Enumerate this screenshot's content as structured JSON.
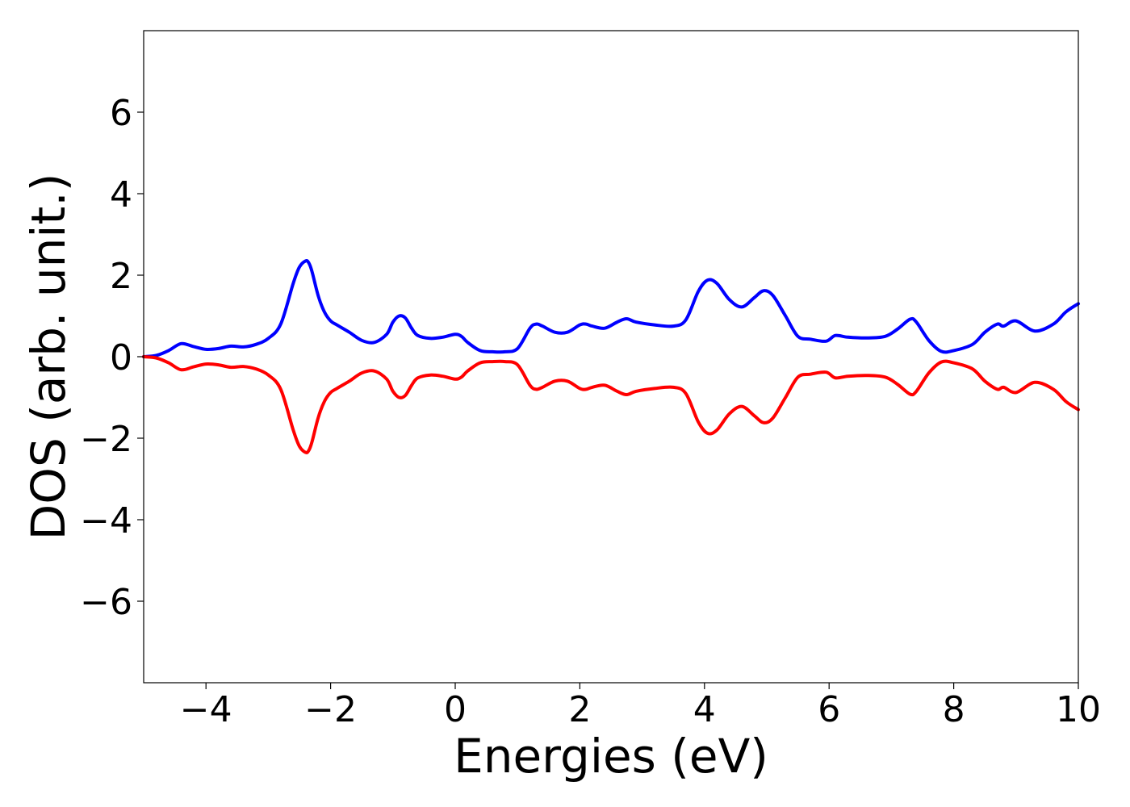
{
  "chart_data": {
    "type": "line",
    "title": "",
    "xlabel": "Energies (eV)",
    "ylabel": "DOS (arb. unit.)",
    "xlim": [
      -5,
      10
    ],
    "ylim": [
      -8,
      8
    ],
    "xticks": [
      -4,
      -2,
      0,
      2,
      4,
      6,
      8,
      10
    ],
    "xtick_labels": [
      "−4",
      "−2",
      "0",
      "2",
      "4",
      "6",
      "8",
      "10"
    ],
    "yticks": [
      -6,
      -4,
      -2,
      0,
      2,
      4,
      6
    ],
    "ytick_labels": [
      "−6",
      "−4",
      "−2",
      "0",
      "2",
      "4",
      "6"
    ],
    "grid": false,
    "legend": false,
    "series": [
      {
        "color": "#0000ff",
        "x": [
          -5.0,
          -4.8,
          -4.6,
          -4.4,
          -4.2,
          -4.0,
          -3.8,
          -3.6,
          -3.4,
          -3.2,
          -3.0,
          -2.8,
          -2.6,
          -2.5,
          -2.4,
          -2.35,
          -2.3,
          -2.2,
          -2.1,
          -2.0,
          -1.9,
          -1.7,
          -1.5,
          -1.3,
          -1.1,
          -1.0,
          -0.9,
          -0.8,
          -0.7,
          -0.6,
          -0.4,
          -0.2,
          0.0,
          0.1,
          0.2,
          0.4,
          0.6,
          0.8,
          1.0,
          1.2,
          1.3,
          1.4,
          1.6,
          1.8,
          2.0,
          2.1,
          2.2,
          2.4,
          2.6,
          2.75,
          2.9,
          3.2,
          3.5,
          3.7,
          3.9,
          4.05,
          4.2,
          4.4,
          4.6,
          4.8,
          4.95,
          5.1,
          5.3,
          5.5,
          5.7,
          5.95,
          6.1,
          6.3,
          6.6,
          6.9,
          7.1,
          7.3,
          7.4,
          7.6,
          7.8,
          8.0,
          8.3,
          8.5,
          8.7,
          8.8,
          9.0,
          9.3,
          9.6,
          9.8,
          10.0
        ],
        "y": [
          0.0,
          0.03,
          0.15,
          0.32,
          0.25,
          0.18,
          0.2,
          0.26,
          0.24,
          0.3,
          0.45,
          0.8,
          1.8,
          2.2,
          2.35,
          2.3,
          2.1,
          1.5,
          1.1,
          0.88,
          0.78,
          0.6,
          0.4,
          0.35,
          0.55,
          0.85,
          1.0,
          0.95,
          0.7,
          0.52,
          0.45,
          0.48,
          0.55,
          0.5,
          0.35,
          0.15,
          0.12,
          0.12,
          0.2,
          0.7,
          0.8,
          0.75,
          0.6,
          0.6,
          0.78,
          0.8,
          0.75,
          0.7,
          0.85,
          0.93,
          0.85,
          0.78,
          0.75,
          0.9,
          1.6,
          1.88,
          1.8,
          1.4,
          1.22,
          1.45,
          1.62,
          1.5,
          1.0,
          0.5,
          0.43,
          0.38,
          0.52,
          0.48,
          0.46,
          0.5,
          0.68,
          0.92,
          0.85,
          0.4,
          0.13,
          0.15,
          0.3,
          0.6,
          0.8,
          0.75,
          0.88,
          0.63,
          0.8,
          1.1,
          1.3
        ]
      },
      {
        "color": "#ff0000",
        "x": [
          -5.0,
          -4.8,
          -4.6,
          -4.4,
          -4.2,
          -4.0,
          -3.8,
          -3.6,
          -3.4,
          -3.2,
          -3.0,
          -2.8,
          -2.6,
          -2.5,
          -2.4,
          -2.35,
          -2.3,
          -2.2,
          -2.1,
          -2.0,
          -1.9,
          -1.7,
          -1.5,
          -1.3,
          -1.1,
          -1.0,
          -0.9,
          -0.8,
          -0.7,
          -0.6,
          -0.4,
          -0.2,
          0.0,
          0.1,
          0.2,
          0.4,
          0.6,
          0.8,
          1.0,
          1.2,
          1.3,
          1.4,
          1.6,
          1.8,
          2.0,
          2.1,
          2.2,
          2.4,
          2.6,
          2.75,
          2.9,
          3.2,
          3.5,
          3.7,
          3.9,
          4.05,
          4.2,
          4.4,
          4.6,
          4.8,
          4.95,
          5.1,
          5.3,
          5.5,
          5.7,
          5.95,
          6.1,
          6.3,
          6.6,
          6.9,
          7.1,
          7.3,
          7.4,
          7.6,
          7.8,
          8.0,
          8.3,
          8.5,
          8.7,
          8.8,
          9.0,
          9.3,
          9.6,
          9.8,
          10.0
        ],
        "y": [
          0.0,
          -0.03,
          -0.15,
          -0.32,
          -0.25,
          -0.18,
          -0.2,
          -0.26,
          -0.24,
          -0.3,
          -0.45,
          -0.8,
          -1.8,
          -2.2,
          -2.35,
          -2.3,
          -2.1,
          -1.5,
          -1.1,
          -0.88,
          -0.78,
          -0.6,
          -0.4,
          -0.35,
          -0.55,
          -0.85,
          -1.0,
          -0.95,
          -0.7,
          -0.52,
          -0.45,
          -0.48,
          -0.55,
          -0.5,
          -0.35,
          -0.15,
          -0.12,
          -0.12,
          -0.2,
          -0.7,
          -0.8,
          -0.75,
          -0.6,
          -0.6,
          -0.78,
          -0.8,
          -0.75,
          -0.7,
          -0.85,
          -0.93,
          -0.85,
          -0.78,
          -0.75,
          -0.9,
          -1.6,
          -1.88,
          -1.8,
          -1.4,
          -1.22,
          -1.45,
          -1.62,
          -1.5,
          -1.0,
          -0.5,
          -0.43,
          -0.38,
          -0.52,
          -0.48,
          -0.46,
          -0.5,
          -0.68,
          -0.92,
          -0.85,
          -0.4,
          -0.13,
          -0.15,
          -0.3,
          -0.6,
          -0.8,
          -0.75,
          -0.88,
          -0.63,
          -0.8,
          -1.1,
          -1.3
        ]
      }
    ]
  }
}
